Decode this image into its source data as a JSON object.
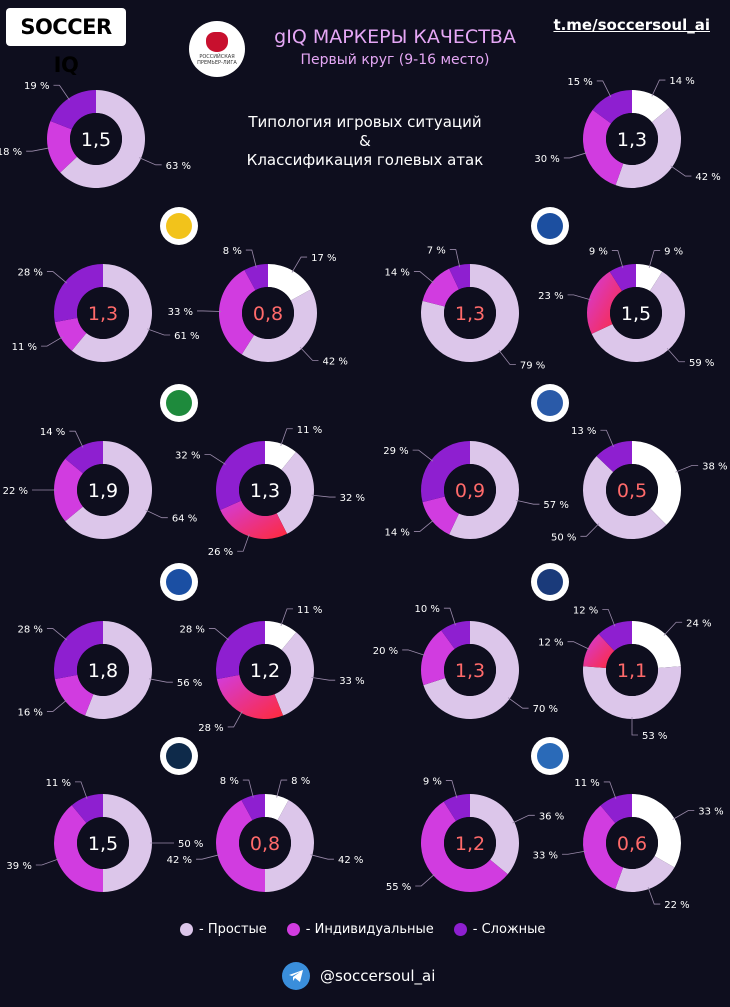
{
  "header": {
    "brand": "SOCCER IQ",
    "title": "gIQ МАРКЕРЫ КАЧЕСТВА",
    "subtitle": "Первый круг (9-16 место)",
    "link": "t.me/soccersoul_ai",
    "center_line1": "Типология игровых ситуаций",
    "center_line2": "&",
    "center_line3": "Классификация голевых атак",
    "league_logo_text": "РОССИЙСКАЯ ПРЕМЬЕР-ЛИГА"
  },
  "colors": {
    "simple": "#dcc6ea",
    "individual": "#d13ce0",
    "complex": "#8e1fd0",
    "white": "#ffffff",
    "red": "#ff2a4a",
    "center_white_text": "#ffffff",
    "center_red_text": "#ff6a6a"
  },
  "legend": [
    {
      "label": "- Простые",
      "color": "#dcc6ea"
    },
    {
      "label": "- Индивидуальные",
      "color": "#d13ce0"
    },
    {
      "label": "- Сложные",
      "color": "#8e1fd0"
    }
  ],
  "footer": {
    "handle": "@soccersoul_ai"
  },
  "team_logos": [
    {
      "name": "rostov-logo",
      "color": "#f2c31b"
    },
    {
      "name": "dynamo-logo",
      "color": "#1c4fa0"
    },
    {
      "name": "akhmat-logo",
      "color": "#1e8a3c"
    },
    {
      "name": "krylia-logo",
      "color": "#2a5aa8"
    },
    {
      "name": "samara-logo",
      "color": "#1b4fa3"
    },
    {
      "name": "orenburg-logo",
      "color": "#1a3a7a"
    },
    {
      "name": "sochi-logo",
      "color": "#0e2a4a"
    },
    {
      "name": "nn-logo",
      "color": "#2a6ab8"
    }
  ],
  "chart_data": [
    {
      "type": "pie",
      "center": "1,5",
      "center_color": "white",
      "series": [
        {
          "label": "63 %",
          "value": 63,
          "color": "simple"
        },
        {
          "label": "18 %",
          "value": 18,
          "color": "individual"
        },
        {
          "label": "19 %",
          "value": 19,
          "color": "complex"
        }
      ]
    },
    {
      "type": "pie",
      "center": "1,3",
      "center_color": "white",
      "series": [
        {
          "label": "14 %",
          "value": 14,
          "color": "white"
        },
        {
          "label": "42 %",
          "value": 42,
          "color": "simple"
        },
        {
          "label": "30 %",
          "value": 30,
          "color": "individual"
        },
        {
          "label": "15 %",
          "value": 15,
          "color": "complex"
        }
      ]
    },
    {
      "type": "pie",
      "center": "1,3",
      "center_color": "red",
      "series": [
        {
          "label": "61 %",
          "value": 61,
          "color": "simple"
        },
        {
          "label": "11 %",
          "value": 11,
          "color": "individual"
        },
        {
          "label": "28 %",
          "value": 28,
          "color": "complex"
        }
      ]
    },
    {
      "type": "pie",
      "center": "0,8",
      "center_color": "red",
      "series": [
        {
          "label": "17 %",
          "value": 17,
          "color": "white"
        },
        {
          "label": "42 %",
          "value": 42,
          "color": "simple"
        },
        {
          "label": "33 %",
          "value": 33,
          "color": "individual"
        },
        {
          "label": "8 %",
          "value": 8,
          "color": "complex"
        }
      ]
    },
    {
      "type": "pie",
      "center": "1,3",
      "center_color": "red",
      "series": [
        {
          "label": "79 %",
          "value": 79,
          "color": "simple"
        },
        {
          "label": "14 %",
          "value": 14,
          "color": "individual"
        },
        {
          "label": "7 %",
          "value": 7,
          "color": "complex"
        }
      ]
    },
    {
      "type": "pie",
      "center": "1,5",
      "center_color": "white",
      "series": [
        {
          "label": "9 %",
          "value": 9,
          "color": "white"
        },
        {
          "label": "59 %",
          "value": 59,
          "color": "simple"
        },
        {
          "label": "23 %",
          "value": 23,
          "color": "red"
        },
        {
          "label": "9 %",
          "value": 9,
          "color": "complex"
        }
      ]
    },
    {
      "type": "pie",
      "center": "1,9",
      "center_color": "white",
      "series": [
        {
          "label": "64 %",
          "value": 64,
          "color": "simple"
        },
        {
          "label": "22 %",
          "value": 22,
          "color": "individual"
        },
        {
          "label": "14 %",
          "value": 14,
          "color": "complex"
        }
      ]
    },
    {
      "type": "pie",
      "center": "1,3",
      "center_color": "white",
      "series": [
        {
          "label": "11 %",
          "value": 11,
          "color": "white"
        },
        {
          "label": "32 %",
          "value": 32,
          "color": "simple"
        },
        {
          "label": "26 %",
          "value": 26,
          "color": "red"
        },
        {
          "label": "32 %",
          "value": 32,
          "color": "complex"
        }
      ]
    },
    {
      "type": "pie",
      "center": "0,9",
      "center_color": "red",
      "series": [
        {
          "label": "57 %",
          "value": 57,
          "color": "simple"
        },
        {
          "label": "14 %",
          "value": 14,
          "color": "individual"
        },
        {
          "label": "29 %",
          "value": 29,
          "color": "complex"
        }
      ]
    },
    {
      "type": "pie",
      "center": "0,5",
      "center_color": "red",
      "series": [
        {
          "label": "38 %",
          "value": 38,
          "color": "white"
        },
        {
          "label": "50 %",
          "value": 50,
          "color": "simple"
        },
        {
          "label": "13 %",
          "value": 13,
          "color": "complex"
        }
      ]
    },
    {
      "type": "pie",
      "center": "1,8",
      "center_color": "white",
      "series": [
        {
          "label": "56 %",
          "value": 56,
          "color": "simple"
        },
        {
          "label": "16 %",
          "value": 16,
          "color": "individual"
        },
        {
          "label": "28 %",
          "value": 28,
          "color": "complex"
        }
      ]
    },
    {
      "type": "pie",
      "center": "1,2",
      "center_color": "white",
      "series": [
        {
          "label": "11 %",
          "value": 11,
          "color": "white"
        },
        {
          "label": "33 %",
          "value": 33,
          "color": "simple"
        },
        {
          "label": "28 %",
          "value": 28,
          "color": "red"
        },
        {
          "label": "28 %",
          "value": 28,
          "color": "complex"
        }
      ]
    },
    {
      "type": "pie",
      "center": "1,3",
      "center_color": "red",
      "series": [
        {
          "label": "70 %",
          "value": 70,
          "color": "simple"
        },
        {
          "label": "20 %",
          "value": 20,
          "color": "individual"
        },
        {
          "label": "10 %",
          "value": 10,
          "color": "complex"
        }
      ]
    },
    {
      "type": "pie",
      "center": "1,1",
      "center_color": "red",
      "series": [
        {
          "label": "24 %",
          "value": 24,
          "color": "white"
        },
        {
          "label": "53 %",
          "value": 53,
          "color": "simple"
        },
        {
          "label": "12 %",
          "value": 12,
          "color": "red"
        },
        {
          "label": "12 %",
          "value": 12,
          "color": "complex"
        }
      ]
    },
    {
      "type": "pie",
      "center": "1,5",
      "center_color": "white",
      "series": [
        {
          "label": "50 %",
          "value": 50,
          "color": "simple"
        },
        {
          "label": "39 %",
          "value": 39,
          "color": "individual"
        },
        {
          "label": "11 %",
          "value": 11,
          "color": "complex"
        }
      ]
    },
    {
      "type": "pie",
      "center": "0,8",
      "center_color": "red",
      "series": [
        {
          "label": "8 %",
          "value": 8,
          "color": "white"
        },
        {
          "label": "42 %",
          "value": 42,
          "color": "simple"
        },
        {
          "label": "42 %",
          "value": 42,
          "color": "individual"
        },
        {
          "label": "8 %",
          "value": 8,
          "color": "complex"
        }
      ]
    },
    {
      "type": "pie",
      "center": "1,2",
      "center_color": "red",
      "series": [
        {
          "label": "36 %",
          "value": 36,
          "color": "simple"
        },
        {
          "label": "55 %",
          "value": 55,
          "color": "individual"
        },
        {
          "label": "9 %",
          "value": 9,
          "color": "complex"
        }
      ]
    },
    {
      "type": "pie",
      "center": "0,6",
      "center_color": "red",
      "series": [
        {
          "label": "33 %",
          "value": 33,
          "color": "white"
        },
        {
          "label": "22 %",
          "value": 22,
          "color": "simple"
        },
        {
          "label": "33 %",
          "value": 33,
          "color": "individual"
        },
        {
          "label": "11 %",
          "value": 11,
          "color": "complex"
        }
      ]
    }
  ]
}
